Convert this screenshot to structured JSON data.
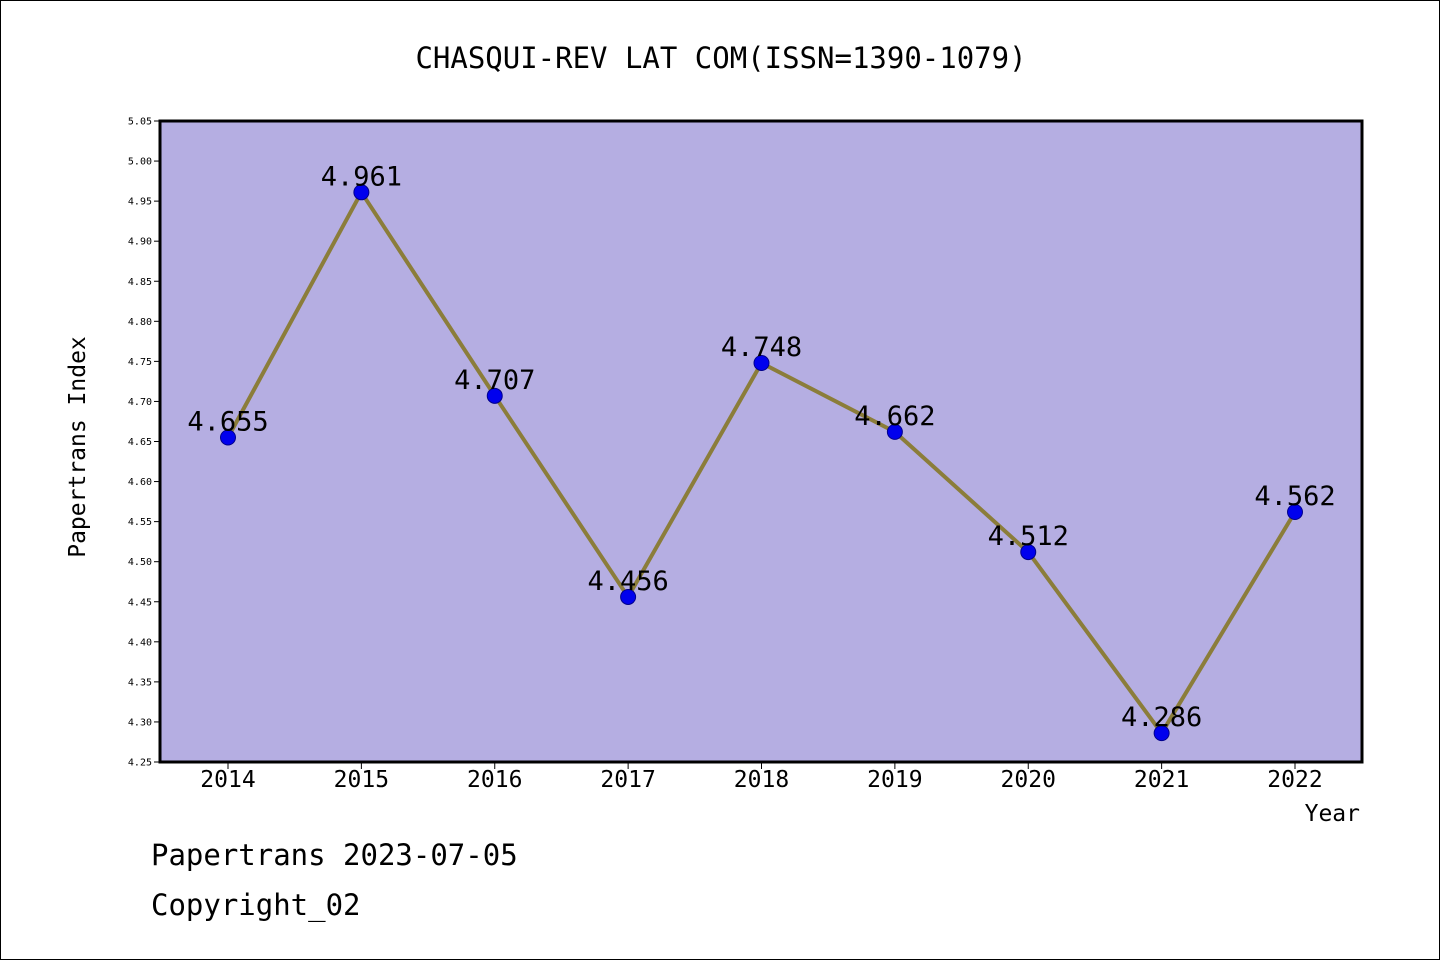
{
  "chart_data": {
    "type": "line",
    "title": "CHASQUI-REV LAT COM(ISSN=1390-1079)",
    "xlabel": "Year",
    "ylabel": "Papertrans Index",
    "categories": [
      "2014",
      "2015",
      "2016",
      "2017",
      "2018",
      "2019",
      "2020",
      "2021",
      "2022"
    ],
    "series": [
      {
        "name": "Papertrans Index",
        "values": [
          4.655,
          4.961,
          4.707,
          4.456,
          4.748,
          4.662,
          4.512,
          4.286,
          4.562
        ],
        "labels": [
          "4.655",
          "4.961",
          "4.707",
          "4.456",
          "4.748",
          "4.662",
          "4.512",
          "4.286",
          "4.562"
        ]
      }
    ],
    "ylim": [
      4.25,
      5.05
    ],
    "yticks": [
      "4.25",
      "4.30",
      "4.35",
      "4.40",
      "4.45",
      "4.50",
      "4.55",
      "4.60",
      "4.65",
      "4.70",
      "4.75",
      "4.80",
      "4.85",
      "4.90",
      "4.95",
      "5.00",
      "5.05"
    ],
    "grid": false,
    "colors": {
      "plot_background": "#b5aee2",
      "line": "#8b7d3a",
      "marker": "#0000ee"
    }
  },
  "footer": {
    "line1": "Papertrans 2023-07-05",
    "line2": "Copyright_02"
  }
}
